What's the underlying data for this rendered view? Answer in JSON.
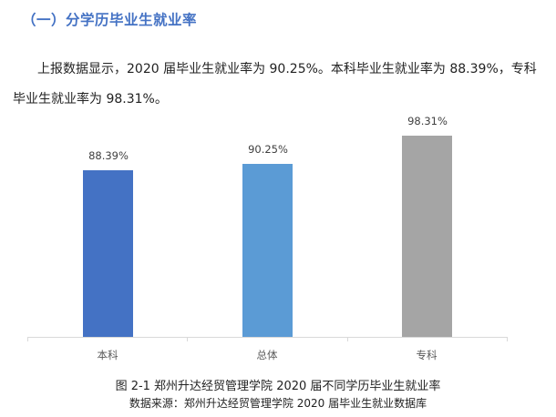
{
  "section": {
    "heading": "（一）分学历毕业生就业率",
    "paragraph_line1": "上报数据显示，2020 届毕业生就业率为 90.25%。本科毕业生就业率为 88.39%，专科",
    "paragraph_line2": "毕业生就业率为 98.31%。"
  },
  "chart_data": {
    "type": "bar",
    "title": "图 2-1 郑州升达经贸管理学院 2020 届不同学历毕业生就业率",
    "source": "数据来源：郑州升达经贸管理学院 2020 届毕业生就业数据库",
    "categories": [
      "本科",
      "总体",
      "专科"
    ],
    "values": [
      88.39,
      90.25,
      98.31
    ],
    "value_labels": [
      "88.39%",
      "90.25%",
      "98.31%"
    ],
    "colors": [
      "#4472c4",
      "#5b9bd5",
      "#a5a5a5"
    ],
    "xlabel": "",
    "ylabel": "",
    "ylim": [
      0,
      100
    ],
    "grid": false,
    "legend": "none"
  }
}
